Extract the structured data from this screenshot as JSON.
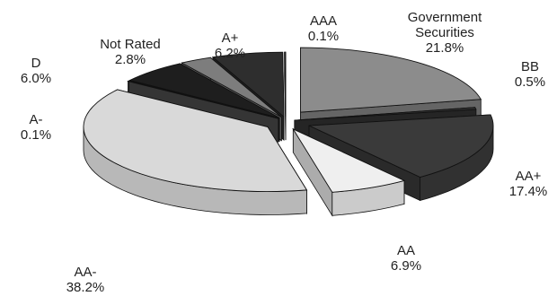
{
  "chart_data": {
    "type": "pie",
    "style": "3d-exploded",
    "slices": [
      {
        "label": "Government Securities",
        "label_lines": [
          "Government",
          "Securities"
        ],
        "pct_label": "21.8%",
        "value": 21.8,
        "color": "#8c8c8c"
      },
      {
        "label": "BB",
        "label_lines": [
          "BB"
        ],
        "pct_label": "0.5%",
        "value": 0.5,
        "color": "#333333"
      },
      {
        "label": "AA+",
        "label_lines": [
          "AA+"
        ],
        "pct_label": "17.4%",
        "value": 17.4,
        "color": "#3a3a3a"
      },
      {
        "label": "AA",
        "label_lines": [
          "AA"
        ],
        "pct_label": "6.9%",
        "value": 6.9,
        "color": "#efefef"
      },
      {
        "label": "AA-",
        "label_lines": [
          "AA-"
        ],
        "pct_label": "38.2%",
        "value": 38.2,
        "color": "#d9d9d9"
      },
      {
        "label": "A-",
        "label_lines": [
          "A-"
        ],
        "pct_label": "0.1%",
        "value": 0.1,
        "color": "#4a4a4a"
      },
      {
        "label": "D",
        "label_lines": [
          "D"
        ],
        "pct_label": "6.0%",
        "value": 6.0,
        "color": "#1e1e1e"
      },
      {
        "label": "Not Rated",
        "label_lines": [
          "Not Rated"
        ],
        "pct_label": "2.8%",
        "value": 2.8,
        "color": "#7d7d7d"
      },
      {
        "label": "A+",
        "label_lines": [
          "A+"
        ],
        "pct_label": "6.2%",
        "value": 6.2,
        "color": "#2e2e2e"
      },
      {
        "label": "AAA",
        "label_lines": [
          "AAA"
        ],
        "pct_label": "0.1%",
        "value": 0.1,
        "color": "#555555"
      }
    ],
    "legend": "none"
  }
}
